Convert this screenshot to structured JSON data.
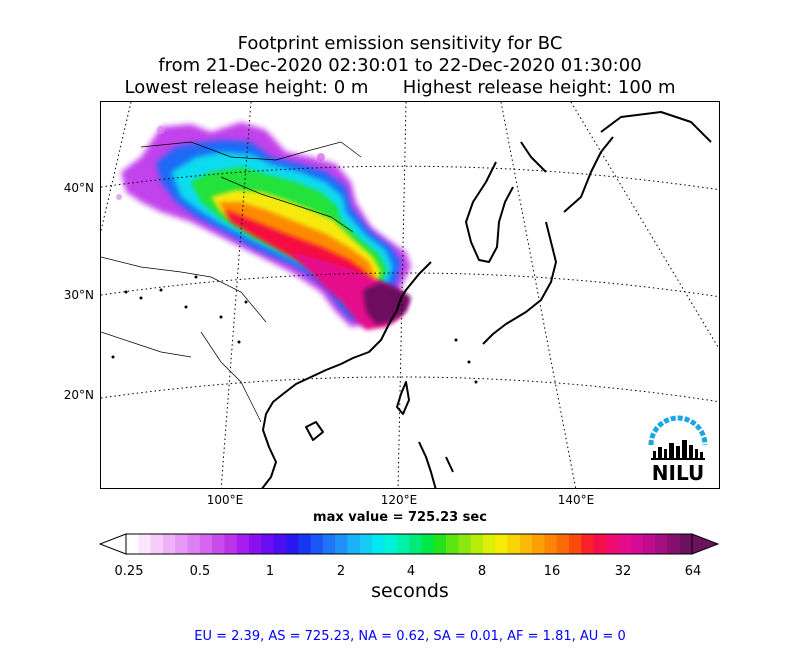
{
  "title": {
    "line1": "Footprint emission sensitivity for BC",
    "line2": "from 21-Dec-2020 02:30:01 to 22-Dec-2020 01:30:00",
    "line3": "Lowest release height: 0 m      Highest release height: 100 m"
  },
  "map": {
    "lat_labels": [
      "40°N",
      "30°N",
      "20°N"
    ],
    "lon_labels": [
      "100°E",
      "120°E",
      "140°E"
    ]
  },
  "max_value_text": "max value = 725.23 sec",
  "colorbar": {
    "tick_labels": [
      "0.25",
      "0.5",
      "1",
      "2",
      "4",
      "8",
      "16",
      "32",
      "64"
    ],
    "unit": "seconds",
    "colors": [
      "#ffffff",
      "#fbe6fd",
      "#f5ccfb",
      "#eeb2f8",
      "#e699f6",
      "#dd80f3",
      "#d466f0",
      "#c94deb",
      "#bd33e8",
      "#a41ef0",
      "#8b10f0",
      "#6c0ef2",
      "#4a0ff2",
      "#2a18f2",
      "#1835f2",
      "#1e56f5",
      "#1f74f7",
      "#1e92f8",
      "#1cb0f8",
      "#14cdf6",
      "#00e8f2",
      "#00f2d8",
      "#00f0aa",
      "#00ec79",
      "#00e84b",
      "#22e21a",
      "#5ce412",
      "#8ae80e",
      "#b6ec0c",
      "#dcf00a",
      "#f6ec08",
      "#fbd407",
      "#fcba06",
      "#fca005",
      "#fc8604",
      "#fc6a04",
      "#fb4a10",
      "#f8212a",
      "#f50f4a",
      "#ee0c70",
      "#e50c8c",
      "#d60c94",
      "#c00d8e",
      "#a40e80",
      "#880f70",
      "#6c1060"
    ]
  },
  "stats_text": "EU = 2.39,  AS = 725.23,  NA = 0.62,  SA = 0.01,  AF = 1.81,  AU = 0",
  "logo": {
    "text": "NILU"
  }
}
